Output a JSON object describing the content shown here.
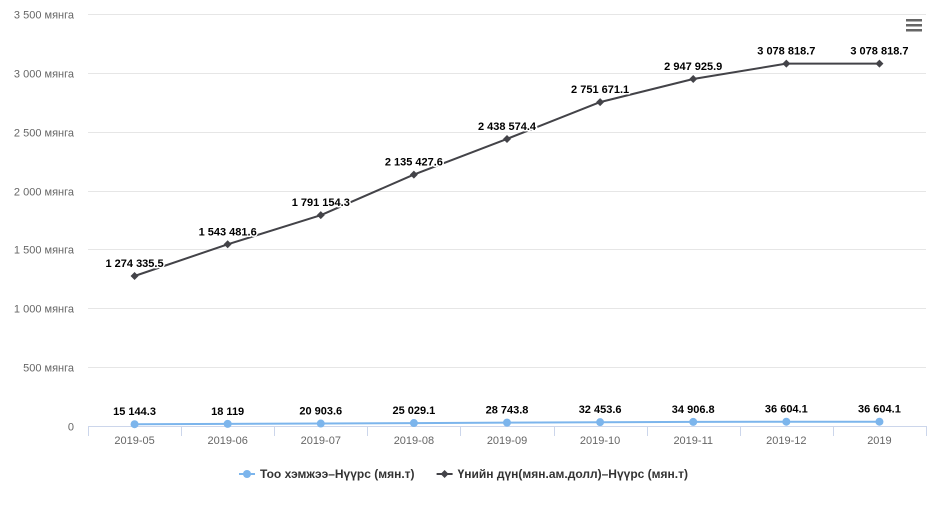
{
  "chart_data": {
    "type": "line",
    "title": "",
    "xlabel": "",
    "ylabel": "",
    "categories": [
      "2019-05",
      "2019-06",
      "2019-07",
      "2019-08",
      "2019-09",
      "2019-10",
      "2019-11",
      "2019-12",
      "2019"
    ],
    "y_ticks": [
      {
        "value": 0,
        "label": "0"
      },
      {
        "value": 500000,
        "label": "500 мянга"
      },
      {
        "value": 1000000,
        "label": "1 000 мянга"
      },
      {
        "value": 1500000,
        "label": "1 500 мянга"
      },
      {
        "value": 2000000,
        "label": "2 000 мянга"
      },
      {
        "value": 2500000,
        "label": "2 500 мянга"
      },
      {
        "value": 3000000,
        "label": "3 000 мянга"
      },
      {
        "value": 3500000,
        "label": "3 500 мянга"
      }
    ],
    "ylim": [
      0,
      3500000
    ],
    "grid": true,
    "legend_position": "bottom-center",
    "series": [
      {
        "name": "Тоо хэмжээ–Нүүрс (мян.т)",
        "color": "#7cb5ec",
        "marker": "circle",
        "values": [
          15144.3,
          18119,
          20903.6,
          25029.1,
          28743.8,
          32453.6,
          34906.8,
          36604.1,
          36604.1
        ],
        "labels": [
          "15 144.3",
          "18 119",
          "20 903.6",
          "25 029.1",
          "28 743.8",
          "32 453.6",
          "34 906.8",
          "36 604.1",
          "36 604.1"
        ]
      },
      {
        "name": "Үнийн дүн(мян.ам.долл)–Нүүрс (мян.т)",
        "color": "#434348",
        "marker": "diamond",
        "values": [
          1274335.5,
          1543481.6,
          1791154.3,
          2135427.6,
          2438574.4,
          2751671.1,
          2947925.9,
          3078818.7,
          3078818.7
        ],
        "labels": [
          "1 274 335.5",
          "1 543 481.6",
          "1 791 154.3",
          "2 135 427.6",
          "2 438 574.4",
          "2 751 671.1",
          "2 947 925.9",
          "3 078 818.7",
          "3 078 818.7"
        ]
      }
    ]
  },
  "ui": {
    "menu_icon": "hamburger-menu-icon"
  }
}
